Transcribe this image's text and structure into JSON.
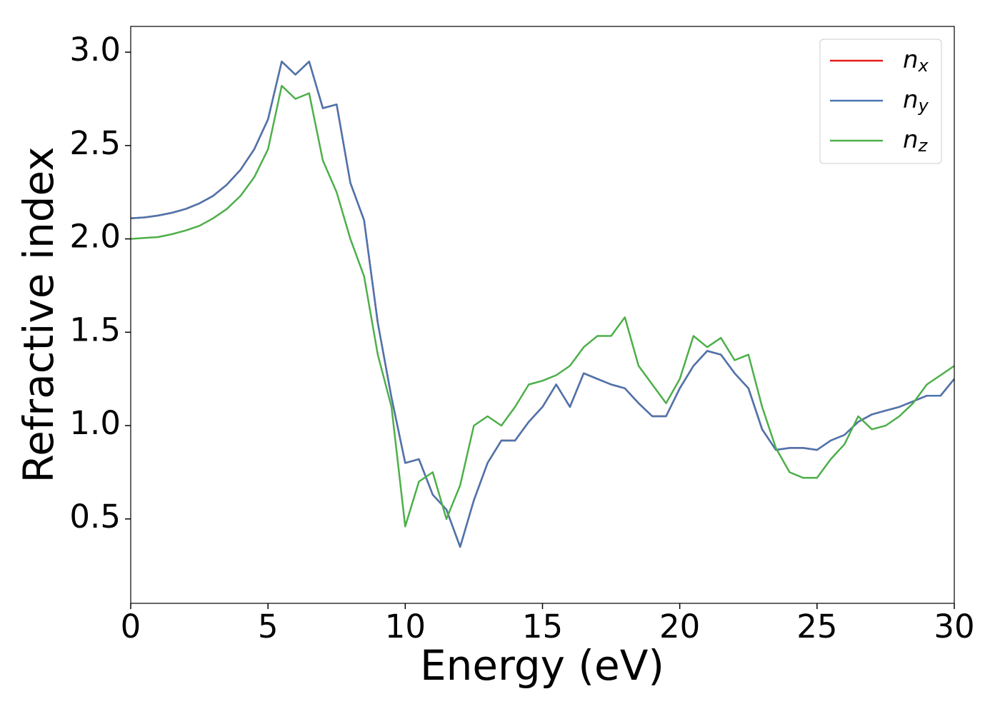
{
  "chart_data": {
    "type": "line",
    "xlabel": "Energy (eV)",
    "ylabel": "Refractive index",
    "x": [
      0,
      0.5,
      1,
      1.5,
      2,
      2.5,
      3,
      3.5,
      4,
      4.5,
      5,
      5.5,
      6,
      6.5,
      7,
      7.5,
      8,
      8.5,
      9,
      9.5,
      10,
      10.5,
      11,
      11.5,
      12,
      12.5,
      13,
      13.5,
      14,
      14.5,
      15,
      15.5,
      16,
      16.5,
      17,
      17.5,
      18,
      18.5,
      19,
      19.5,
      20,
      20.5,
      21,
      21.5,
      22,
      22.5,
      23,
      23.5,
      24,
      24.5,
      25,
      25.5,
      26,
      26.5,
      27,
      27.5,
      28,
      28.5,
      29,
      29.5,
      30
    ],
    "series": [
      {
        "name": "n_x",
        "color": "#e41a1c",
        "values": [
          2.11,
          2.115,
          2.125,
          2.14,
          2.16,
          2.19,
          2.23,
          2.29,
          2.37,
          2.48,
          2.64,
          2.95,
          2.88,
          2.95,
          2.7,
          2.72,
          2.3,
          2.1,
          1.55,
          1.15,
          0.8,
          0.82,
          0.63,
          0.55,
          0.35,
          0.6,
          0.8,
          0.92,
          0.92,
          1.02,
          1.1,
          1.22,
          1.1,
          1.28,
          1.25,
          1.22,
          1.2,
          1.12,
          1.05,
          1.05,
          1.2,
          1.32,
          1.4,
          1.38,
          1.28,
          1.2,
          0.98,
          0.87,
          0.88,
          0.88,
          0.87,
          0.92,
          0.95,
          1.02,
          1.06,
          1.08,
          1.1,
          1.13,
          1.16,
          1.16,
          1.25
        ]
      },
      {
        "name": "n_y",
        "color": "#4a76b0",
        "values": [
          2.11,
          2.115,
          2.125,
          2.14,
          2.16,
          2.19,
          2.23,
          2.29,
          2.37,
          2.48,
          2.64,
          2.95,
          2.88,
          2.95,
          2.7,
          2.72,
          2.3,
          2.1,
          1.55,
          1.15,
          0.8,
          0.82,
          0.63,
          0.55,
          0.35,
          0.6,
          0.8,
          0.92,
          0.92,
          1.02,
          1.1,
          1.22,
          1.1,
          1.28,
          1.25,
          1.22,
          1.2,
          1.12,
          1.05,
          1.05,
          1.2,
          1.32,
          1.4,
          1.38,
          1.28,
          1.2,
          0.98,
          0.87,
          0.88,
          0.88,
          0.87,
          0.92,
          0.95,
          1.02,
          1.06,
          1.08,
          1.1,
          1.13,
          1.16,
          1.16,
          1.25
        ]
      },
      {
        "name": "n_z",
        "color": "#4daf4a",
        "values": [
          2.0,
          2.005,
          2.01,
          2.025,
          2.045,
          2.07,
          2.11,
          2.16,
          2.23,
          2.33,
          2.48,
          2.82,
          2.75,
          2.78,
          2.42,
          2.25,
          2.0,
          1.8,
          1.38,
          1.1,
          0.46,
          0.7,
          0.75,
          0.5,
          0.68,
          1.0,
          1.05,
          1.0,
          1.1,
          1.22,
          1.24,
          1.27,
          1.32,
          1.42,
          1.48,
          1.48,
          1.58,
          1.32,
          1.22,
          1.12,
          1.25,
          1.48,
          1.42,
          1.47,
          1.35,
          1.38,
          1.1,
          0.88,
          0.75,
          0.72,
          0.72,
          0.82,
          0.9,
          1.05,
          0.98,
          1.0,
          1.05,
          1.12,
          1.22,
          1.27,
          1.32
        ]
      }
    ],
    "xlim": [
      0,
      30
    ],
    "ylim": [
      0.048,
      3.138
    ],
    "xticks": [
      0,
      5,
      10,
      15,
      20,
      25,
      30
    ],
    "yticks": [
      0.5,
      {
        "value": 1,
        "label": "1.0"
      },
      1.5,
      {
        "value": 2,
        "label": "2.0"
      },
      2.5,
      {
        "value": 3,
        "label": "3.0"
      }
    ],
    "legend": "upper right"
  }
}
